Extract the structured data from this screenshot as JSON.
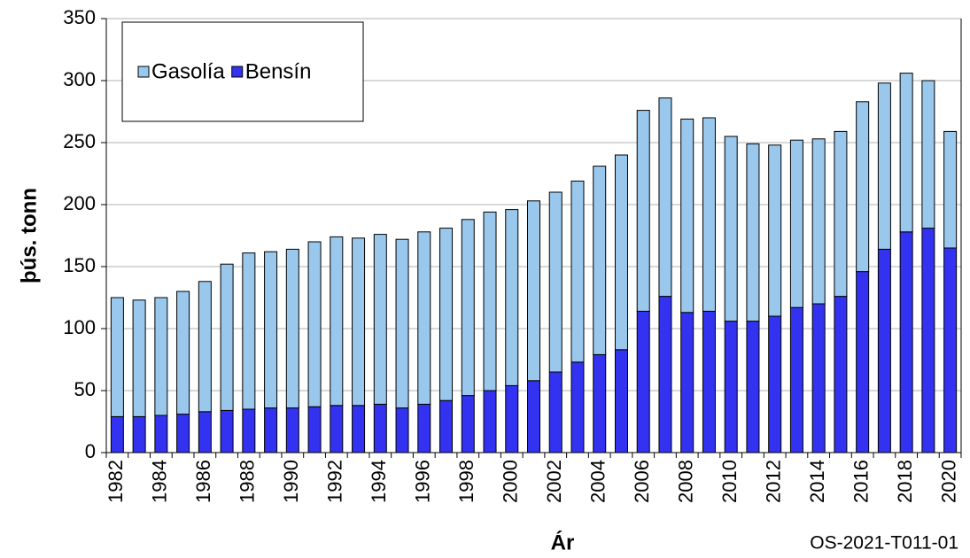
{
  "chart_data": {
    "type": "stacked_bar",
    "y_label": "þús. tonn",
    "x_label": "Ár",
    "annotation": "OS-2021-T011-01",
    "categories": [
      "1982",
      null,
      "1984",
      null,
      "1986",
      null,
      "1988",
      null,
      "1990",
      null,
      "1992",
      null,
      "1994",
      null,
      "1996",
      null,
      "1998",
      null,
      "2000",
      null,
      "2002",
      null,
      "2004",
      null,
      "2006",
      null,
      "2008",
      null,
      "2010",
      null,
      "2012",
      null,
      "2014",
      null,
      "2016",
      null,
      "2018",
      null,
      "2020"
    ],
    "series": [
      {
        "name": "Gasolía",
        "color": "#99c8ec",
        "values": [
          96,
          94,
          95,
          99,
          105,
          118,
          126,
          126,
          128,
          133,
          136,
          135,
          137,
          136,
          139,
          139,
          142,
          144,
          142,
          145,
          145,
          146,
          152,
          157,
          162,
          160,
          156,
          156,
          149,
          143,
          138,
          135,
          133,
          133,
          137,
          134,
          128,
          119,
          94
        ]
      },
      {
        "name": "Bensín",
        "color": "#3232f0",
        "values": [
          29,
          29,
          30,
          31,
          33,
          34,
          35,
          36,
          36,
          37,
          38,
          38,
          39,
          36,
          39,
          42,
          46,
          50,
          54,
          58,
          65,
          73,
          79,
          83,
          114,
          126,
          113,
          114,
          106,
          106,
          110,
          117,
          120,
          126,
          146,
          164,
          178,
          181,
          165
        ]
      }
    ],
    "ylim": [
      0,
      350
    ],
    "yticks": [
      0,
      50,
      100,
      150,
      200,
      250,
      300,
      350
    ],
    "grid": true,
    "legend": "top-left"
  }
}
